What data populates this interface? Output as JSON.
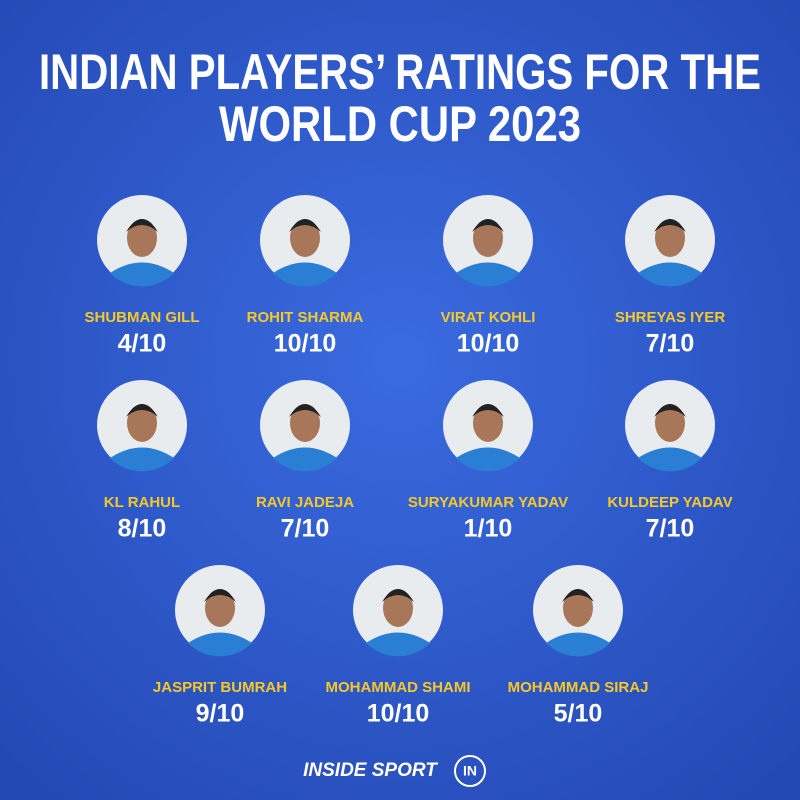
{
  "header": {
    "title_lines": [
      "INDIAN PLAYERS’ RATINGS FOR THE",
      "WORLD CUP 2023"
    ]
  },
  "players": [
    {
      "name": "SHUBMAN GILL",
      "rating": "4/10"
    },
    {
      "name": "ROHIT SHARMA",
      "rating": "10/10"
    },
    {
      "name": "VIRAT KOHLI",
      "rating": "10/10"
    },
    {
      "name": "SHREYAS IYER",
      "rating": "7/10"
    },
    {
      "name": "KL RAHUL",
      "rating": "8/10"
    },
    {
      "name": "RAVI JADEJA",
      "rating": "7/10"
    },
    {
      "name": "SURYAKUMAR YADAV",
      "rating": "1/10"
    },
    {
      "name": "KULDEEP YADAV",
      "rating": "7/10"
    },
    {
      "name": "JASPRIT BUMRAH",
      "rating": "9/10"
    },
    {
      "name": "MOHAMMAD SHAMI",
      "rating": "10/10"
    },
    {
      "name": "MOHAMMAD SIRAJ",
      "rating": "5/10"
    }
  ],
  "footer": {
    "brand": "INSIDE SPORT",
    "logo": "IN"
  }
}
